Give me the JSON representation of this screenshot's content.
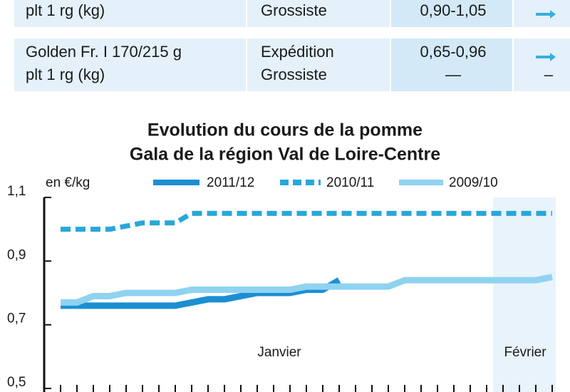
{
  "table": {
    "rows": [
      [
        [
          "plt 1 rg (kg)"
        ],
        [
          "Grossiste"
        ],
        [
          "0,90-1,05"
        ],
        []
      ],
      [
        [
          "Golden Fr. I 170/215 g",
          "plt 1 rg (kg)"
        ],
        [
          "Expédition",
          "Grossiste"
        ],
        [
          "0,65-0,96",
          "—"
        ],
        [
          "",
          "–"
        ]
      ]
    ]
  },
  "chart_data": {
    "type": "line",
    "title": [
      "Evolution du cours de la pomme",
      "Gala de la région Val de Loire-Centre"
    ],
    "y_label": "en €/kg",
    "categories": [
      null,
      null,
      null,
      null,
      null,
      null,
      null,
      null,
      null,
      null,
      null,
      null,
      null,
      "Janvier",
      null,
      null,
      null,
      null,
      null,
      null,
      null,
      null,
      null,
      null,
      null,
      null,
      null,
      null,
      "Février",
      null,
      null
    ],
    "series": [
      {
        "name": "2011/12",
        "color": "#1b8fd2",
        "dash": false,
        "values": [
          0.76,
          0.76,
          0.76,
          0.76,
          0.76,
          0.76,
          0.76,
          0.76,
          0.77,
          0.78,
          0.78,
          0.79,
          0.8,
          0.8,
          0.8,
          0.81,
          0.81,
          0.84,
          null,
          null,
          null,
          null,
          null,
          null,
          null,
          null,
          null,
          null,
          null,
          null,
          null
        ]
      },
      {
        "name": "2010/11",
        "color": "#27a7da",
        "dash": true,
        "values": [
          1.0,
          1.0,
          1.0,
          1.0,
          1.01,
          1.02,
          1.02,
          1.02,
          1.05,
          1.05,
          1.05,
          1.05,
          1.05,
          1.05,
          1.05,
          1.05,
          1.05,
          1.05,
          1.05,
          1.05,
          1.05,
          1.05,
          1.05,
          1.05,
          1.05,
          1.05,
          1.05,
          1.05,
          1.05,
          1.05,
          1.05
        ]
      },
      {
        "name": "2009/10",
        "color": "#8fd3f1",
        "dash": false,
        "values": [
          0.77,
          0.77,
          0.79,
          0.79,
          0.8,
          0.8,
          0.8,
          0.8,
          0.81,
          0.81,
          0.81,
          0.81,
          0.81,
          0.81,
          0.81,
          0.82,
          0.82,
          0.82,
          0.82,
          0.82,
          0.82,
          0.84,
          0.84,
          0.84,
          0.84,
          0.84,
          0.84,
          0.84,
          0.84,
          0.84,
          0.85
        ]
      }
    ],
    "ylim": [
      0.5,
      1.1
    ],
    "yticks": [
      {
        "value": 0.5,
        "label": "0,5"
      },
      {
        "value": 0.7,
        "label": "0,7"
      },
      {
        "value": 0.9,
        "label": "0,9"
      },
      {
        "value": 1.1,
        "label": "1,1"
      }
    ]
  }
}
